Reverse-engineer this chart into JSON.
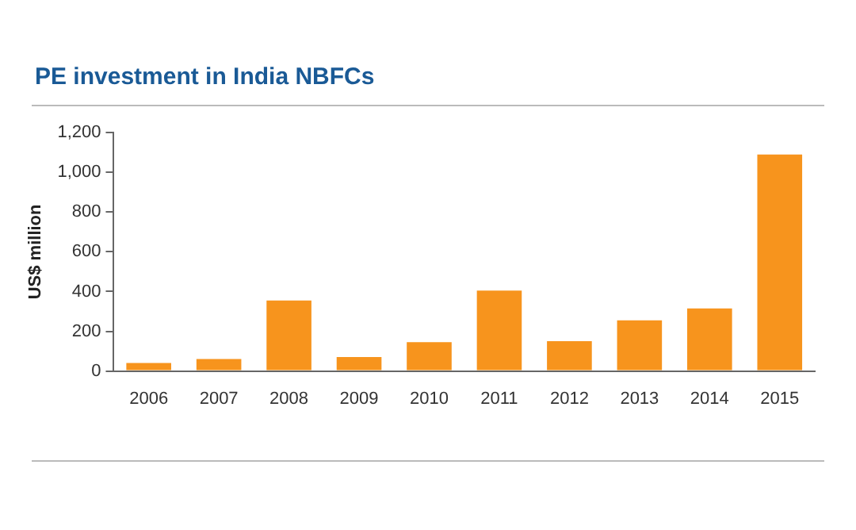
{
  "chart_data": {
    "type": "bar",
    "title": "PE investment in India NBFCs",
    "ylabel": "US$ million",
    "categories": [
      "2006",
      "2007",
      "2008",
      "2009",
      "2010",
      "2011",
      "2012",
      "2013",
      "2014",
      "2015"
    ],
    "values": [
      40,
      60,
      355,
      70,
      145,
      405,
      150,
      255,
      315,
      1090
    ],
    "color": "#f7941d",
    "ylim": [
      0,
      1200
    ],
    "yticks": [
      0,
      200,
      400,
      600,
      800,
      {
        "value": 1000,
        "label": "1,000"
      },
      {
        "value": 1200,
        "label": "1,200"
      }
    ],
    "grid": false,
    "legend": false
  }
}
